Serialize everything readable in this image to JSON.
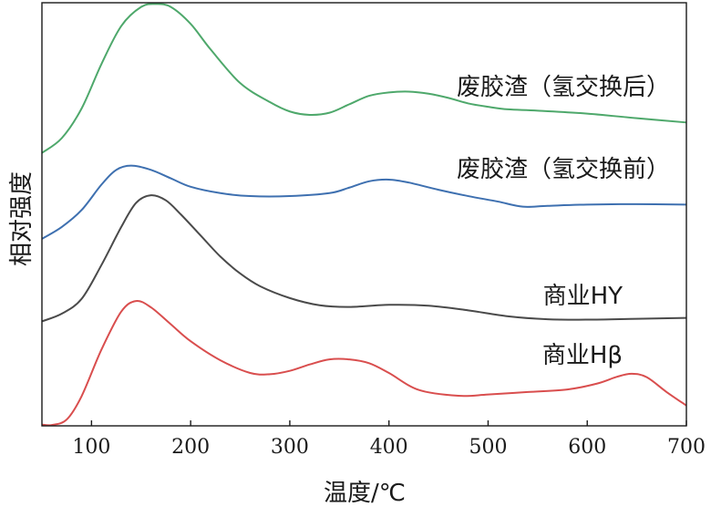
{
  "chart_data": {
    "type": "line",
    "title": "",
    "xlabel": "温度/℃",
    "ylabel": "相对强度",
    "xlim": [
      50,
      700
    ],
    "ylim": [
      0,
      100
    ],
    "x_ticks": [
      100,
      200,
      300,
      400,
      500,
      600,
      700
    ],
    "y_ticks_shown": false,
    "grid": false,
    "series": [
      {
        "name": "废胶渣（氢交换后）",
        "color": "#4ea86b",
        "x": [
          50,
          70,
          90,
          110,
          130,
          150,
          165,
          180,
          200,
          220,
          250,
          280,
          300,
          320,
          340,
          360,
          380,
          400,
          420,
          440,
          460,
          480,
          500,
          520,
          550,
          600,
          650,
          700
        ],
        "y": [
          64.5,
          68,
          75,
          85.5,
          94.5,
          99,
          99.7,
          99,
          95,
          89,
          81,
          76.5,
          74.3,
          73.5,
          74,
          76,
          78,
          78.8,
          79,
          78.5,
          77.5,
          76.2,
          75.4,
          74.8,
          74.5,
          73.8,
          72.7,
          71.7
        ]
      },
      {
        "name": "废胶渣（氢交换前）",
        "color": "#3e70b0",
        "x": [
          50,
          70,
          90,
          110,
          125,
          140,
          160,
          180,
          200,
          230,
          260,
          300,
          340,
          360,
          380,
          400,
          420,
          450,
          480,
          510,
          535,
          560,
          600,
          650,
          700
        ],
        "y": [
          44.2,
          47,
          51,
          57,
          60.5,
          61.5,
          60.5,
          58.5,
          56.5,
          55,
          54.3,
          54.3,
          55,
          56.3,
          57.8,
          58.2,
          57.5,
          55.8,
          54.3,
          53,
          51.8,
          52,
          52.3,
          52.4,
          52.3
        ]
      },
      {
        "name": "商业HY",
        "color": "#4a4a4a",
        "x": [
          50,
          70,
          90,
          110,
          130,
          145,
          160,
          175,
          190,
          210,
          230,
          250,
          270,
          300,
          330,
          360,
          400,
          440,
          480,
          520,
          560,
          600,
          650,
          700
        ],
        "y": [
          24.7,
          26.5,
          30,
          38,
          47,
          52.7,
          54.5,
          53.3,
          50,
          45,
          40,
          36,
          33,
          30.2,
          28.5,
          28.1,
          28.6,
          28.4,
          27.3,
          25.9,
          25.2,
          25.1,
          25.3,
          25.5
        ]
      },
      {
        "name": "商业Hβ",
        "color": "#d94e4e",
        "x": [
          50,
          60,
          75,
          90,
          110,
          130,
          145,
          160,
          180,
          200,
          230,
          260,
          280,
          300,
          320,
          340,
          360,
          380,
          400,
          430,
          470,
          500,
          540,
          580,
          610,
          630,
          645,
          660,
          680,
          700
        ],
        "y": [
          0.3,
          0.2,
          1.5,
          7,
          18,
          27,
          29.5,
          28,
          24,
          20,
          15.5,
          12.5,
          12.2,
          13,
          14.5,
          15.7,
          15.7,
          14.8,
          12.5,
          8.5,
          7.1,
          7.4,
          8,
          8.6,
          10,
          11.6,
          12.3,
          11.5,
          8,
          4.8
        ]
      }
    ],
    "annotations": [
      {
        "series": "废胶渣（氢交换后）",
        "text": "废胶渣（氢交换后）"
      },
      {
        "series": "废胶渣（氢交换前）",
        "text": "废胶渣（氢交换前）"
      },
      {
        "series": "商业HY",
        "text": "商业HY"
      },
      {
        "series": "商业Hβ",
        "text": "商业Hβ"
      }
    ]
  }
}
